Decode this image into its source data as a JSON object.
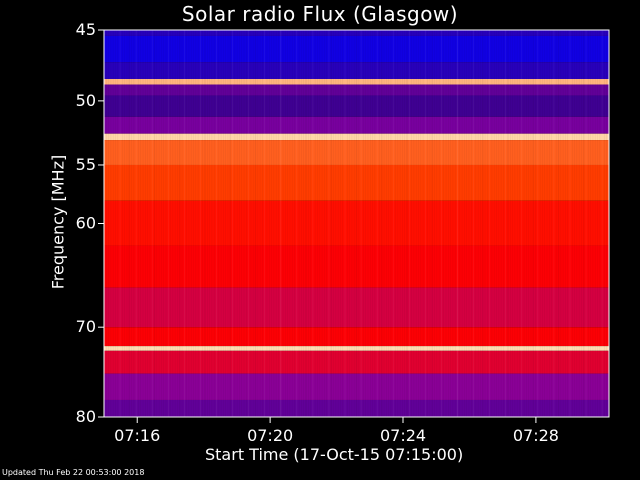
{
  "chart_data": {
    "type": "heatmap",
    "title": "Solar radio Flux (Glasgow)",
    "xlabel": "Start Time (17-Oct-15 07:15:00)",
    "ylabel": "Frequency [MHz]",
    "x_ticks": [
      "07:16",
      "07:20",
      "07:24",
      "07:28"
    ],
    "y_ticks": [
      45,
      50,
      55,
      60,
      70,
      80
    ],
    "x_range_minutes": [
      0,
      15.2
    ],
    "ylim": [
      45,
      80
    ],
    "y_scale": "log",
    "x_tick_minutes": [
      1,
      5,
      9,
      13
    ],
    "colormap": [
      "#000080",
      "#0000ff",
      "#400090",
      "#8000a0",
      "#c00060",
      "#ff0000",
      "#ff4000",
      "#ff8040",
      "#ffd0a0",
      "#ffffe0"
    ],
    "bands": [
      {
        "from_mhz": 45.0,
        "to_mhz": 45.4,
        "level": 0.18
      },
      {
        "from_mhz": 45.4,
        "to_mhz": 47.2,
        "level": 0.14
      },
      {
        "from_mhz": 47.2,
        "to_mhz": 48.4,
        "level": 0.18
      },
      {
        "from_mhz": 48.4,
        "to_mhz": 48.8,
        "level": 0.85
      },
      {
        "from_mhz": 48.8,
        "to_mhz": 49.6,
        "level": 0.28
      },
      {
        "from_mhz": 49.6,
        "to_mhz": 51.2,
        "level": 0.22
      },
      {
        "from_mhz": 51.2,
        "to_mhz": 52.5,
        "level": 0.32
      },
      {
        "from_mhz": 52.5,
        "to_mhz": 53.0,
        "level": 0.9
      },
      {
        "from_mhz": 53.0,
        "to_mhz": 55.0,
        "level": 0.72
      },
      {
        "from_mhz": 55.0,
        "to_mhz": 58.0,
        "level": 0.66
      },
      {
        "from_mhz": 58.0,
        "to_mhz": 62.0,
        "level": 0.58
      },
      {
        "from_mhz": 62.0,
        "to_mhz": 66.0,
        "level": 0.55
      },
      {
        "from_mhz": 66.0,
        "to_mhz": 70.0,
        "level": 0.48
      },
      {
        "from_mhz": 70.0,
        "to_mhz": 72.0,
        "level": 0.55
      },
      {
        "from_mhz": 72.0,
        "to_mhz": 72.5,
        "level": 0.92
      },
      {
        "from_mhz": 72.5,
        "to_mhz": 75.0,
        "level": 0.5
      },
      {
        "from_mhz": 75.0,
        "to_mhz": 78.0,
        "level": 0.35
      },
      {
        "from_mhz": 78.0,
        "to_mhz": 80.0,
        "level": 0.28
      }
    ]
  },
  "footer": {
    "updated": "Updated Thu Feb 22 00:53:00 2018"
  }
}
